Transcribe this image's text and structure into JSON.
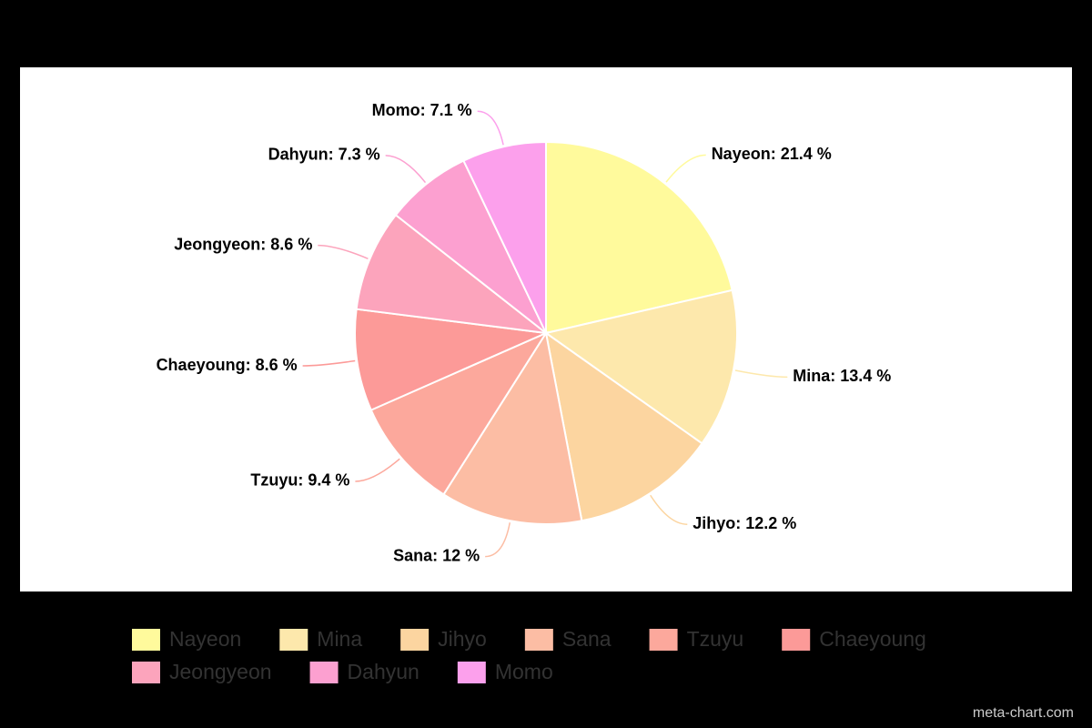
{
  "chart_data": {
    "type": "pie",
    "categories": [
      "Nayeon",
      "Mina",
      "Jihyo",
      "Sana",
      "Tzuyu",
      "Chaeyoung",
      "Jeongyeon",
      "Dahyun",
      "Momo"
    ],
    "values": [
      21.4,
      13.4,
      12.2,
      12,
      9.4,
      8.6,
      8.6,
      7.3,
      7.1
    ],
    "value_labels": [
      "Nayeon: 21.4 %",
      "Mina: 13.4 %",
      "Jihyo: 12.2 %",
      "Sana: 12 %",
      "Tzuyu: 9.4 %",
      "Chaeyoung: 8.6 %",
      "Jeongyeon: 8.6 %",
      "Dahyun: 7.3 %",
      "Momo: 7.1 %"
    ],
    "colors": [
      "#fffa9c",
      "#fde8ac",
      "#fcd5a0",
      "#fcbda4",
      "#fca89c",
      "#fc9a98",
      "#fca4bc",
      "#fca0d0",
      "#fca0ec"
    ],
    "legend": "bottom",
    "watermark": "meta-chart.com"
  }
}
